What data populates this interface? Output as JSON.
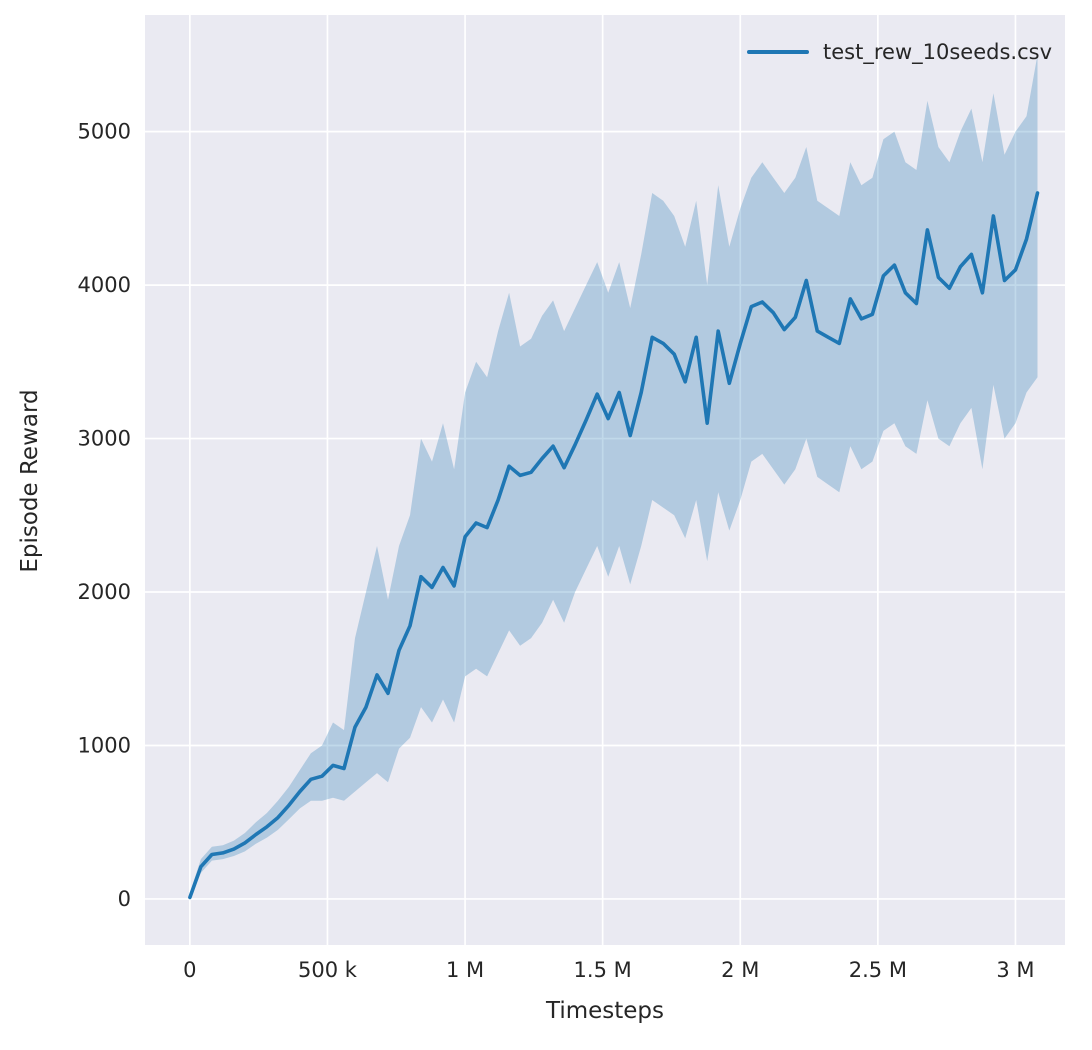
{
  "figure": {
    "background": "#ffffff",
    "plot_background": "#eaeaf2",
    "grid_color": "#ffffff",
    "line_color": "#1f77b4",
    "band_color": "rgba(31,119,180,0.28)",
    "text_color": "#262626"
  },
  "legend": {
    "label": "test_rew_10seeds.csv"
  },
  "chart_data": {
    "type": "line",
    "title": "",
    "xlabel": "Timesteps",
    "ylabel": "Episode Reward",
    "xlim": [
      -163000,
      3180000
    ],
    "ylim": [
      -300,
      5760
    ],
    "grid": true,
    "legend_position": "upper right",
    "x_ticks": [
      {
        "value": 0,
        "label": "0"
      },
      {
        "value": 500000,
        "label": "500 k"
      },
      {
        "value": 1000000,
        "label": "1 M"
      },
      {
        "value": 1500000,
        "label": "1.5 M"
      },
      {
        "value": 2000000,
        "label": "2 M"
      },
      {
        "value": 2500000,
        "label": "2.5 M"
      },
      {
        "value": 3000000,
        "label": "3 M"
      }
    ],
    "y_ticks": [
      {
        "value": 0,
        "label": "0"
      },
      {
        "value": 1000,
        "label": "1000"
      },
      {
        "value": 2000,
        "label": "2000"
      },
      {
        "value": 3000,
        "label": "3000"
      },
      {
        "value": 4000,
        "label": "4000"
      },
      {
        "value": 5000,
        "label": "5000"
      }
    ],
    "series": [
      {
        "name": "test_rew_10seeds.csv",
        "x": [
          0,
          40000,
          80000,
          120000,
          160000,
          200000,
          240000,
          280000,
          320000,
          360000,
          400000,
          440000,
          480000,
          520000,
          560000,
          600000,
          640000,
          680000,
          720000,
          760000,
          800000,
          840000,
          880000,
          920000,
          960000,
          1000000,
          1040000,
          1080000,
          1120000,
          1160000,
          1200000,
          1240000,
          1280000,
          1320000,
          1360000,
          1400000,
          1440000,
          1480000,
          1520000,
          1560000,
          1600000,
          1640000,
          1680000,
          1720000,
          1760000,
          1800000,
          1840000,
          1880000,
          1920000,
          1960000,
          2000000,
          2040000,
          2080000,
          2120000,
          2160000,
          2200000,
          2240000,
          2280000,
          2320000,
          2360000,
          2400000,
          2440000,
          2480000,
          2520000,
          2560000,
          2600000,
          2640000,
          2680000,
          2720000,
          2760000,
          2800000,
          2840000,
          2880000,
          2920000,
          2960000,
          3000000,
          3040000,
          3080000
        ],
        "mean": [
          10,
          210,
          290,
          300,
          325,
          365,
          420,
          470,
          530,
          610,
          700,
          780,
          800,
          870,
          850,
          1120,
          1250,
          1460,
          1340,
          1620,
          1780,
          2100,
          2030,
          2160,
          2040,
          2360,
          2450,
          2420,
          2600,
          2820,
          2760,
          2780,
          2870,
          2950,
          2810,
          2960,
          3120,
          3290,
          3130,
          3300,
          3020,
          3300,
          3660,
          3620,
          3550,
          3370,
          3660,
          3100,
          3700,
          3360,
          3620,
          3860,
          3890,
          3820,
          3710,
          3790,
          4030,
          3700,
          3660,
          3620,
          3910,
          3780,
          3810,
          4060,
          4130,
          3950,
          3880,
          4360,
          4050,
          3980,
          4120,
          4200,
          3950,
          4450,
          4030,
          4100,
          4300,
          4600
        ],
        "low": [
          -10,
          170,
          250,
          260,
          280,
          310,
          360,
          400,
          450,
          520,
          590,
          640,
          640,
          660,
          640,
          700,
          760,
          820,
          760,
          980,
          1050,
          1250,
          1150,
          1300,
          1150,
          1450,
          1500,
          1450,
          1600,
          1750,
          1650,
          1700,
          1800,
          1950,
          1800,
          2000,
          2150,
          2300,
          2100,
          2300,
          2050,
          2300,
          2600,
          2550,
          2500,
          2350,
          2600,
          2200,
          2650,
          2400,
          2600,
          2850,
          2900,
          2800,
          2700,
          2800,
          3000,
          2750,
          2700,
          2650,
          2950,
          2800,
          2850,
          3050,
          3100,
          2950,
          2900,
          3250,
          3000,
          2950,
          3100,
          3200,
          2800,
          3350,
          3000,
          3100,
          3300,
          3400
        ],
        "high": [
          40,
          260,
          340,
          350,
          380,
          430,
          500,
          560,
          640,
          730,
          840,
          950,
          1000,
          1150,
          1100,
          1700,
          2000,
          2300,
          1950,
          2300,
          2500,
          3000,
          2850,
          3100,
          2800,
          3300,
          3500,
          3400,
          3700,
          3950,
          3600,
          3650,
          3800,
          3900,
          3700,
          3850,
          4000,
          4150,
          3950,
          4150,
          3850,
          4200,
          4600,
          4550,
          4450,
          4250,
          4550,
          4000,
          4650,
          4250,
          4500,
          4700,
          4800,
          4700,
          4600,
          4700,
          4900,
          4550,
          4500,
          4450,
          4800,
          4650,
          4700,
          4950,
          5000,
          4800,
          4750,
          5200,
          4900,
          4800,
          5000,
          5150,
          4800,
          5250,
          4850,
          5000,
          5100,
          5500
        ]
      }
    ]
  }
}
